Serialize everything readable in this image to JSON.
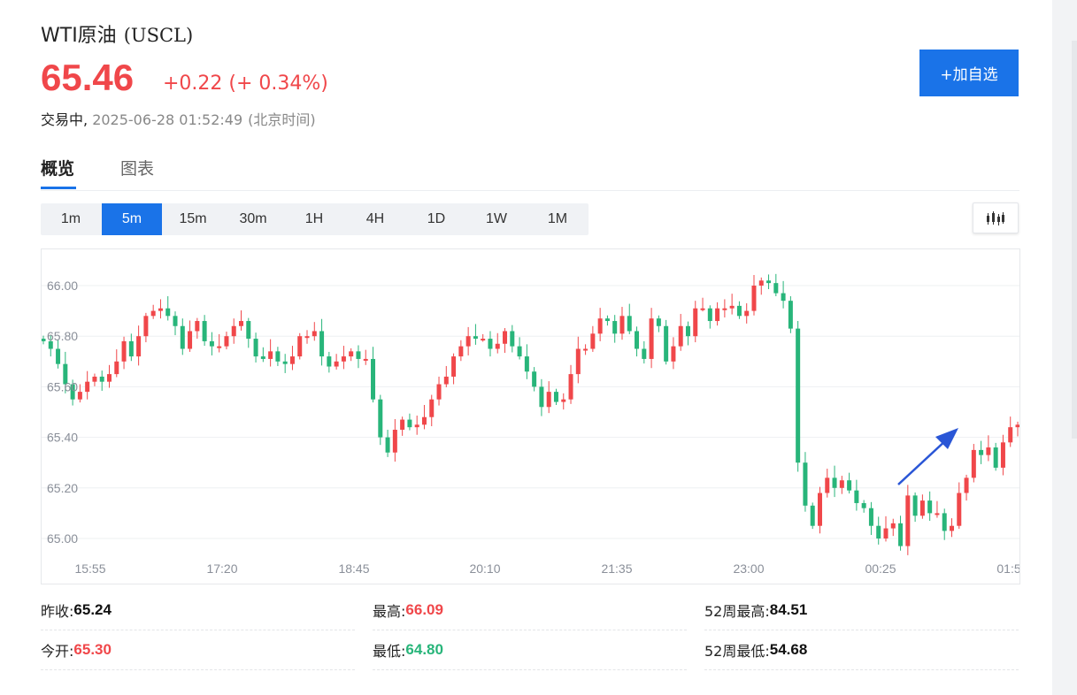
{
  "header": {
    "name": "WTI原油",
    "code": "(USCL)",
    "price": "65.46",
    "change": "+0.22 (+ 0.34%)",
    "status": "交易中,",
    "timestamp": "2025-06-28 01:52:49",
    "timezone": "(北京时间)",
    "add_watchlist_label": "+加自选"
  },
  "colors": {
    "up": "#f0474a",
    "down": "#28b57a",
    "accent": "#1a73e8"
  },
  "tabs": [
    {
      "label": "概览",
      "active": true
    },
    {
      "label": "图表",
      "active": false
    }
  ],
  "periods": [
    {
      "label": "1m",
      "active": false
    },
    {
      "label": "5m",
      "active": true
    },
    {
      "label": "15m",
      "active": false
    },
    {
      "label": "30m",
      "active": false
    },
    {
      "label": "1H",
      "active": false
    },
    {
      "label": "4H",
      "active": false
    },
    {
      "label": "1D",
      "active": false
    },
    {
      "label": "1W",
      "active": false
    },
    {
      "label": "1M",
      "active": false
    }
  ],
  "chart_type_icon": "candlestick-icon",
  "chart_data": {
    "type": "candlestick",
    "interval": "5m",
    "x_tick_labels": [
      "15:55",
      "17:20",
      "18:45",
      "20:10",
      "21:35",
      "23:00",
      "00:25",
      "01:5"
    ],
    "y_tick_labels": [
      "66.00",
      "65.80",
      "65.60",
      "65.40",
      "65.20",
      "65.00"
    ],
    "ylim": [
      64.95,
      66.08
    ],
    "grid": true,
    "annotation": "trend-up-arrow",
    "closes": [
      65.78,
      65.75,
      65.69,
      65.61,
      65.55,
      65.58,
      65.62,
      65.64,
      65.62,
      65.65,
      65.7,
      65.78,
      65.72,
      65.8,
      65.88,
      65.9,
      65.91,
      65.88,
      65.84,
      65.75,
      65.82,
      65.86,
      65.78,
      65.76,
      65.76,
      65.8,
      65.84,
      65.86,
      65.79,
      65.72,
      65.71,
      65.74,
      65.7,
      65.69,
      65.72,
      65.8,
      65.8,
      65.82,
      65.72,
      65.68,
      65.7,
      65.72,
      65.74,
      65.71,
      65.71,
      65.55,
      65.4,
      65.34,
      65.43,
      65.47,
      65.44,
      65.45,
      65.48,
      65.55,
      65.61,
      65.64,
      65.72,
      65.76,
      65.8,
      65.79,
      65.79,
      65.75,
      65.77,
      65.82,
      65.76,
      65.72,
      65.66,
      65.6,
      65.52,
      65.58,
      65.54,
      65.55,
      65.65,
      65.75,
      65.75,
      65.81,
      65.87,
      65.86,
      65.81,
      65.88,
      65.82,
      65.75,
      65.71,
      65.87,
      65.84,
      65.7,
      65.76,
      65.84,
      65.8,
      65.91,
      65.91,
      65.86,
      65.91,
      65.91,
      65.92,
      65.88,
      65.9,
      66.0,
      66.02,
      66.01,
      65.97,
      65.94,
      65.83,
      65.3,
      65.13,
      65.05,
      65.18,
      65.24,
      65.2,
      65.23,
      65.19,
      65.14,
      65.12,
      65.05,
      65.0,
      65.04,
      65.06,
      64.97,
      65.17,
      65.09,
      65.15,
      65.1,
      65.1,
      65.03,
      65.05,
      65.18,
      65.24,
      65.35,
      65.33,
      65.36,
      65.28,
      65.38,
      65.44,
      65.45
    ]
  },
  "stats": [
    {
      "label": "昨收:",
      "value": "65.24",
      "tone": "neutral"
    },
    {
      "label": "最高:",
      "value": "66.09",
      "tone": "up"
    },
    {
      "label": "52周最高:",
      "value": "84.51",
      "tone": "neutral"
    },
    {
      "label": "今开:",
      "value": "65.30",
      "tone": "up"
    },
    {
      "label": "最低:",
      "value": "64.80",
      "tone": "down"
    },
    {
      "label": "52周最低:",
      "value": "54.68",
      "tone": "neutral"
    }
  ]
}
